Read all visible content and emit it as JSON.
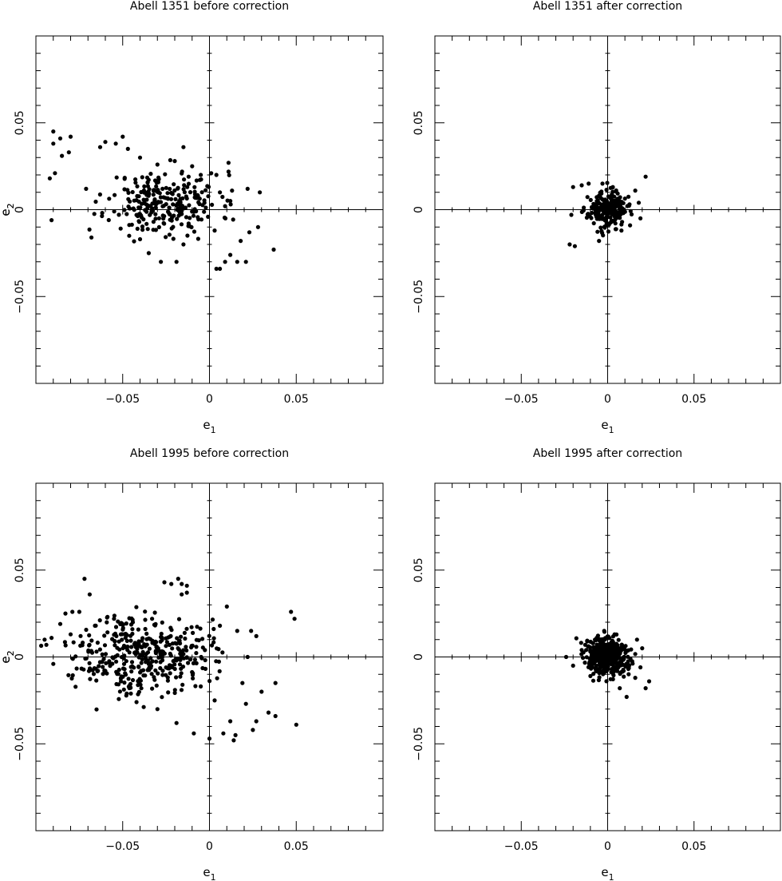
{
  "chart_data": [
    {
      "type": "scatter",
      "title": "Abell 1351 before correction",
      "xlabel": "e1",
      "ylabel": "e2",
      "xlim": [
        -0.1,
        0.1
      ],
      "ylim": [
        -0.1,
        0.1
      ],
      "x_ticks": [
        -0.05,
        0,
        0.05
      ],
      "y_ticks": [
        -0.05,
        0,
        0.05
      ],
      "x_tick_labels": [
        "−0.05",
        "0",
        "0.05"
      ],
      "y_tick_labels": [
        "−0.05",
        "0",
        "0.05"
      ],
      "grid": false,
      "center": [
        -0.026,
        0.004
      ],
      "series": [
        {
          "points": [
            [
              -0.09,
              0.045
            ],
            [
              -0.086,
              0.041
            ],
            [
              -0.08,
              0.042
            ],
            [
              -0.09,
              0.038
            ],
            [
              -0.085,
              0.031
            ],
            [
              -0.081,
              0.033
            ],
            [
              -0.089,
              0.021
            ],
            [
              -0.092,
              0.018
            ],
            [
              -0.063,
              0.036
            ],
            [
              -0.06,
              0.039
            ],
            [
              -0.054,
              0.038
            ],
            [
              -0.05,
              0.042
            ],
            [
              -0.047,
              0.035
            ],
            [
              -0.04,
              0.03
            ],
            [
              -0.03,
              0.026
            ],
            [
              -0.02,
              0.028
            ],
            [
              -0.015,
              0.036
            ],
            [
              -0.01,
              0.025
            ],
            [
              -0.012,
              0.019
            ],
            [
              -0.005,
              0.02
            ],
            [
              0.001,
              0.021
            ],
            [
              0.004,
              0.02
            ],
            [
              0.006,
              0.01
            ],
            [
              0.011,
              0.027
            ],
            [
              0.013,
              0.011
            ],
            [
              0.022,
              0.012
            ],
            [
              0.029,
              0.01
            ],
            [
              -0.091,
              -0.006
            ],
            [
              -0.068,
              -0.016
            ],
            [
              -0.04,
              -0.017
            ],
            [
              -0.035,
              -0.025
            ],
            [
              -0.028,
              -0.03
            ],
            [
              -0.019,
              -0.03
            ],
            [
              -0.015,
              -0.02
            ],
            [
              -0.012,
              -0.008
            ],
            [
              0.003,
              -0.012
            ],
            [
              0.004,
              -0.034
            ],
            [
              0.006,
              -0.034
            ],
            [
              0.009,
              -0.03
            ],
            [
              0.012,
              -0.026
            ],
            [
              0.016,
              -0.03
            ],
            [
              0.018,
              -0.018
            ],
            [
              0.021,
              -0.03
            ],
            [
              0.023,
              -0.013
            ],
            [
              0.028,
              -0.01
            ],
            [
              0.037,
              -0.023
            ],
            [
              0.009,
              0.002
            ],
            [
              0.012,
              0.005
            ]
          ]
        }
      ]
    },
    {
      "type": "scatter",
      "title": "Abell 1351 after correction",
      "xlabel": "e1",
      "ylabel": "e2",
      "xlim": [
        -0.1,
        0.1
      ],
      "ylim": [
        -0.1,
        0.1
      ],
      "x_ticks": [
        -0.05,
        0,
        0.05
      ],
      "y_ticks": [
        -0.05,
        0,
        0.05
      ],
      "x_tick_labels": [
        "−0.05",
        "0",
        "0.05"
      ],
      "y_tick_labels": [
        "−0.05",
        "0",
        "0.05"
      ],
      "grid": false,
      "center": [
        0.0,
        0.0
      ],
      "series": [
        {
          "points": [
            [
              -0.022,
              -0.02
            ],
            [
              -0.019,
              -0.021
            ],
            [
              -0.02,
              0.013
            ],
            [
              -0.015,
              0.014
            ],
            [
              -0.011,
              0.015
            ],
            [
              -0.003,
              0.015
            ],
            [
              0.003,
              0.013
            ],
            [
              0.022,
              0.019
            ],
            [
              0.016,
              0.011
            ],
            [
              0.019,
              -0.005
            ],
            [
              0.013,
              -0.009
            ],
            [
              0.008,
              -0.012
            ],
            [
              -0.005,
              -0.018
            ],
            [
              0.018,
              0.004
            ],
            [
              -0.021,
              -0.003
            ]
          ]
        }
      ]
    },
    {
      "type": "scatter",
      "title": "Abell 1995 before correction",
      "xlabel": "e1",
      "ylabel": "e2",
      "xlim": [
        -0.1,
        0.1
      ],
      "ylim": [
        -0.1,
        0.1
      ],
      "x_ticks": [
        -0.05,
        0,
        0.05
      ],
      "y_ticks": [
        -0.05,
        0,
        0.05
      ],
      "x_tick_labels": [
        "−0.05",
        "0",
        "0.05"
      ],
      "y_tick_labels": [
        "−0.05",
        "0",
        "0.05"
      ],
      "grid": false,
      "center": [
        -0.038,
        0.002
      ],
      "series": [
        {
          "points": [
            [
              -0.072,
              0.045
            ],
            [
              -0.069,
              0.036
            ],
            [
              -0.026,
              0.043
            ],
            [
              -0.022,
              0.042
            ],
            [
              -0.018,
              0.045
            ],
            [
              -0.016,
              0.042
            ],
            [
              -0.013,
              0.041
            ],
            [
              -0.016,
              0.036
            ],
            [
              -0.013,
              0.037
            ],
            [
              -0.083,
              0.025
            ],
            [
              -0.079,
              0.026
            ],
            [
              -0.075,
              0.026
            ],
            [
              -0.091,
              0.011
            ],
            [
              -0.094,
              0.007
            ],
            [
              -0.095,
              0.01
            ],
            [
              -0.09,
              -0.004
            ],
            [
              0.047,
              0.026
            ],
            [
              0.049,
              0.022
            ],
            [
              0.05,
              -0.039
            ],
            [
              0.038,
              -0.015
            ],
            [
              0.038,
              -0.034
            ],
            [
              0.034,
              -0.032
            ],
            [
              0.03,
              -0.02
            ],
            [
              0.027,
              -0.037
            ],
            [
              0.025,
              -0.042
            ],
            [
              0.021,
              -0.027
            ],
            [
              0.015,
              -0.045
            ],
            [
              0.014,
              -0.048
            ],
            [
              0.012,
              -0.037
            ],
            [
              0.008,
              -0.044
            ],
            [
              0.0,
              -0.047
            ],
            [
              0.003,
              -0.025
            ],
            [
              0.01,
              0.029
            ],
            [
              0.006,
              0.018
            ],
            [
              0.016,
              0.015
            ],
            [
              0.024,
              0.015
            ],
            [
              0.027,
              0.012
            ],
            [
              0.022,
              0.0
            ],
            [
              0.019,
              -0.015
            ],
            [
              -0.009,
              -0.044
            ],
            [
              -0.019,
              -0.038
            ],
            [
              -0.03,
              -0.03
            ],
            [
              -0.042,
              -0.026
            ],
            [
              -0.051,
              -0.014
            ],
            [
              -0.06,
              -0.008
            ],
            [
              -0.086,
              0.019
            ],
            [
              -0.08,
              0.013
            ],
            [
              -0.066,
              0.018
            ],
            [
              -0.055,
              0.022
            ]
          ]
        }
      ]
    },
    {
      "type": "scatter",
      "title": "Abell 1995 after correction",
      "xlabel": "e1",
      "ylabel": "e2",
      "xlim": [
        -0.1,
        0.1
      ],
      "ylim": [
        -0.1,
        0.1
      ],
      "x_ticks": [
        -0.05,
        0,
        0.05
      ],
      "y_ticks": [
        -0.05,
        0,
        0.05
      ],
      "x_tick_labels": [
        "−0.05",
        "0",
        "0.05"
      ],
      "y_tick_labels": [
        "−0.05",
        "0",
        "0.05"
      ],
      "grid": false,
      "center": [
        0.0,
        0.0
      ],
      "series": [
        {
          "points": [
            [
              -0.024,
              0.0
            ],
            [
              -0.02,
              -0.005
            ],
            [
              -0.015,
              0.004
            ],
            [
              -0.013,
              0.007
            ],
            [
              -0.002,
              0.015
            ],
            [
              0.004,
              0.013
            ],
            [
              0.017,
              0.01
            ],
            [
              0.02,
              0.005
            ],
            [
              0.024,
              -0.014
            ],
            [
              0.022,
              -0.018
            ],
            [
              0.011,
              -0.023
            ],
            [
              0.007,
              -0.018
            ],
            [
              0.016,
              -0.012
            ],
            [
              0.019,
              -0.006
            ],
            [
              -0.01,
              -0.011
            ]
          ]
        }
      ]
    }
  ]
}
